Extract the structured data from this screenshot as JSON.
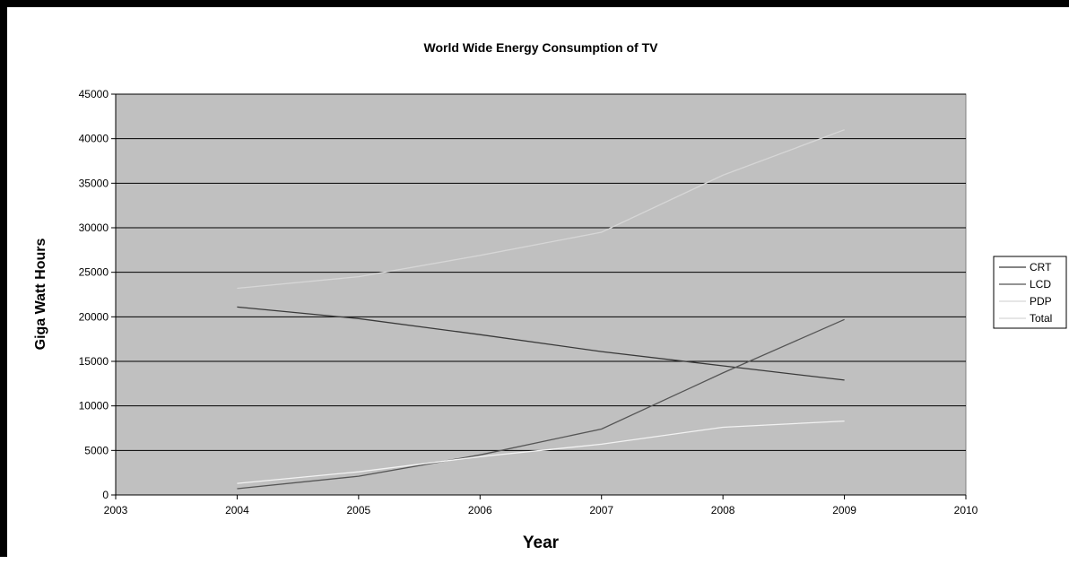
{
  "chart_data": {
    "type": "line",
    "title": "World Wide Energy Consumption of TV",
    "xlabel": "Year",
    "ylabel": "Giga Watt Hours",
    "xlim": [
      2003,
      2010
    ],
    "ylim": [
      0,
      45000
    ],
    "x_ticks": [
      2003,
      2004,
      2005,
      2006,
      2007,
      2008,
      2009,
      2010
    ],
    "y_ticks": [
      0,
      5000,
      10000,
      15000,
      20000,
      25000,
      30000,
      35000,
      40000,
      45000
    ],
    "x": [
      2004,
      2005,
      2006,
      2007,
      2008,
      2009
    ],
    "series": [
      {
        "name": "CRT",
        "color": "#3a3a3a",
        "values": [
          21100,
          19800,
          18000,
          16100,
          14500,
          12900
        ]
      },
      {
        "name": "LCD",
        "color": "#555555",
        "values": [
          700,
          2100,
          4500,
          7400,
          13700,
          19700
        ]
      },
      {
        "name": "PDP",
        "color": "#f2f2f2",
        "values": [
          1300,
          2600,
          4300,
          5700,
          7600,
          8300
        ]
      },
      {
        "name": "Total",
        "color": "#d6d6d6",
        "values": [
          23200,
          24500,
          26900,
          29500,
          35900,
          41000
        ]
      }
    ],
    "grid": true,
    "plot_background": "#c0c0c0",
    "legend_position": "right"
  }
}
